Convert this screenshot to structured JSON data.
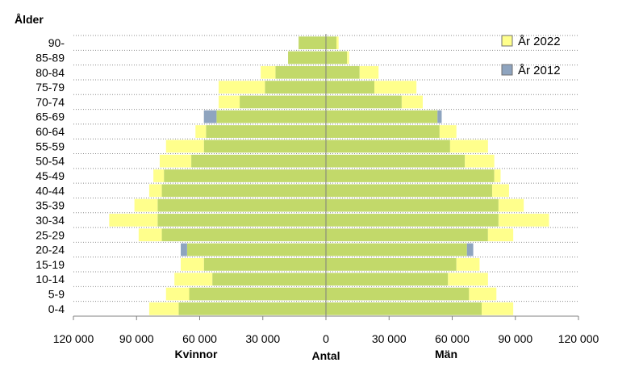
{
  "chart_data": {
    "type": "bar",
    "orientation": "horizontal",
    "layout": "population-pyramid",
    "ylabel": "Ålder",
    "xlabel": "Antal",
    "left_label": "Kvinnor",
    "right_label": "Män",
    "xlim": [
      -120000,
      120000
    ],
    "xticks": [
      -120000,
      -90000,
      -60000,
      -30000,
      0,
      30000,
      60000,
      90000,
      120000
    ],
    "xtick_labels": [
      "120 000",
      "90 000",
      "60 000",
      "30 000",
      "0",
      "30 000",
      "60 000",
      "90 000",
      "120 000"
    ],
    "grid": "horizontal dotted",
    "legend_position": "top-right",
    "categories": [
      "0-4",
      "5-9",
      "10-14",
      "15-19",
      "20-24",
      "25-29",
      "30-34",
      "35-39",
      "40-44",
      "45-49",
      "50-54",
      "55-59",
      "60-64",
      "65-69",
      "70-74",
      "75-79",
      "80-84",
      "85-89",
      "90-"
    ],
    "series": [
      {
        "name": "År 2022",
        "color": "#ffff8c",
        "women": [
          84000,
          76000,
          72000,
          69000,
          66000,
          89000,
          103000,
          91000,
          84000,
          82000,
          79000,
          76000,
          62000,
          52000,
          51000,
          51000,
          31000,
          18000,
          13000
        ],
        "men": [
          89000,
          81000,
          77000,
          73000,
          67000,
          89000,
          106000,
          94000,
          87000,
          83000,
          80000,
          77000,
          62000,
          53000,
          46000,
          43000,
          25000,
          11000,
          6000
        ]
      },
      {
        "name": "År 2012",
        "color": "#8ea4bf",
        "women": [
          70000,
          65000,
          54000,
          58000,
          69000,
          78000,
          80000,
          80000,
          78000,
          77000,
          64000,
          58000,
          57000,
          58000,
          41000,
          29000,
          24000,
          18000,
          13000
        ],
        "men": [
          74000,
          68000,
          58000,
          62000,
          70000,
          77000,
          82000,
          82000,
          79000,
          80000,
          66000,
          59000,
          54000,
          55000,
          36000,
          23000,
          16000,
          10000,
          5000
        ]
      }
    ]
  }
}
